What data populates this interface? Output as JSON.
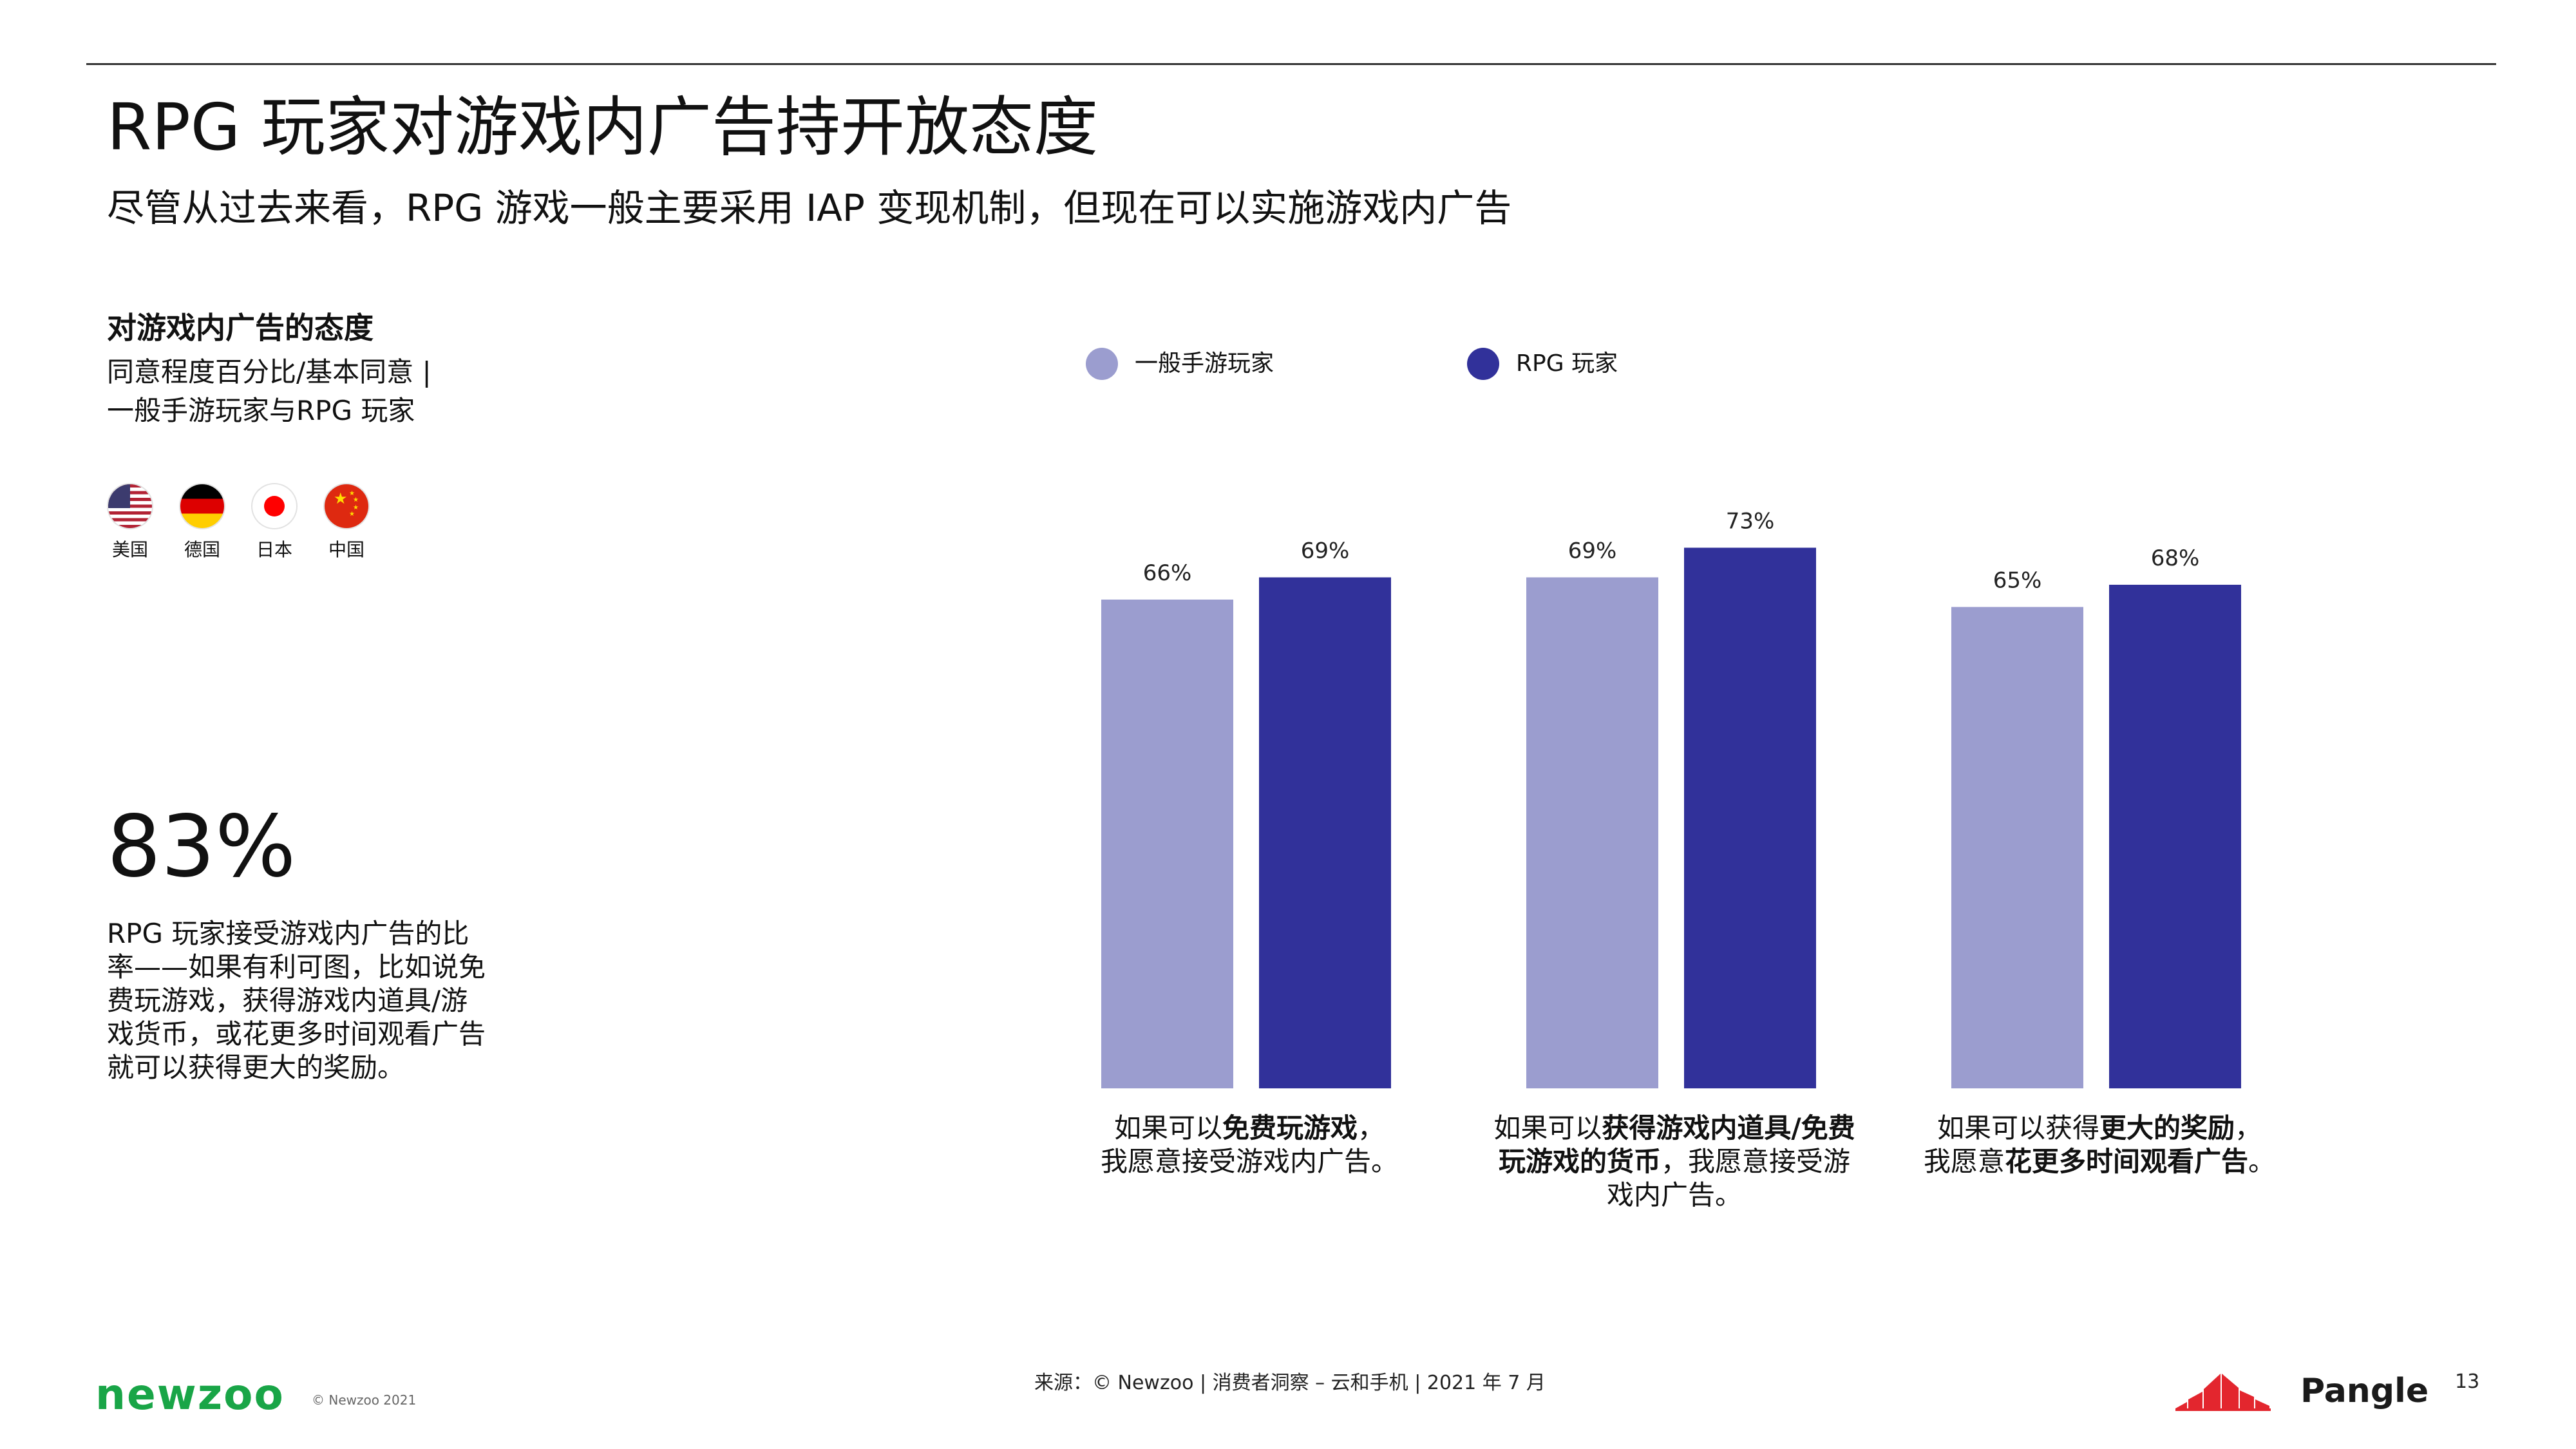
{
  "page": {
    "title": "RPG 玩家对游戏内广告持开放态度",
    "subtitle": "尽管从过去来看，RPG 游戏一般主要采用 IAP 变现机制，但现在可以实施游戏内广告",
    "page_number": "13"
  },
  "sidebar": {
    "heading": "对游戏内广告的态度",
    "description_lines": [
      "同意程度百分比/基本同意 |",
      "一般手游玩家与RPG 玩家"
    ],
    "flags": [
      {
        "label": "美国",
        "icon": "us-flag-icon"
      },
      {
        "label": "德国",
        "icon": "germany-flag-icon"
      },
      {
        "label": "日本",
        "icon": "japan-flag-icon"
      },
      {
        "label": "中国",
        "icon": "china-flag-icon"
      }
    ],
    "stat_value": "83%",
    "stat_description_lines": [
      "RPG 玩家接受游戏内广告的比",
      "率——如果有利可图，比如说免",
      "费玩游戏，获得游戏内道具/游",
      "戏货币，或花更多时间观看广告",
      "就可以获得更大的奖励。"
    ]
  },
  "chart_data": {
    "type": "bar",
    "categories": [
      "如果可以免费玩游戏，我愿意接受游戏内广告。",
      "如果可以获得游戏内道具/免费玩游戏的货币，我愿意接受游戏内广告。",
      "如果可以获得更大的奖励，我愿意花更多时间观看广告。"
    ],
    "category_label_lines": [
      [
        {
          "normal": "如果可以",
          "bold": "免费玩游戏",
          "after": "，"
        },
        {
          "normal": "我愿意接受游戏内广告。",
          "bold": "",
          "after": ""
        }
      ],
      [
        {
          "normal": "如果可以",
          "bold": "获得游戏内道具/免费",
          "after": ""
        },
        {
          "normal": "",
          "bold": "玩游戏的货币",
          "after": "，我愿意接受游"
        },
        {
          "normal": "戏内广告。",
          "bold": "",
          "after": ""
        }
      ],
      [
        {
          "normal": "如果可以获得",
          "bold": "更大的奖励",
          "after": "，"
        },
        {
          "normal": "我愿意",
          "bold": "花更多时间观看广告",
          "after": "。"
        }
      ]
    ],
    "series": [
      {
        "name": "一般手游玩家",
        "values": [
          66,
          69,
          65
        ],
        "labels": [
          "66%",
          "69%",
          "65%"
        ],
        "color": "#9b9dcf"
      },
      {
        "name": "RPG 玩家",
        "values": [
          69,
          73,
          68
        ],
        "labels": [
          "69%",
          "73%",
          "68%"
        ],
        "color": "#31319a"
      }
    ],
    "ylim": [
      0,
      100
    ],
    "legend_position": "top-left",
    "grid": false
  },
  "footer": {
    "brand": "newzoo",
    "copyright": "© Newzoo 2021",
    "source": "来源：© Newzoo | 消费者洞察 – 云和手机 | 2021 年 7 月",
    "partner_logo_text": "Pangle",
    "brand_color": "#19a547",
    "partner_color": "#e3262e"
  }
}
